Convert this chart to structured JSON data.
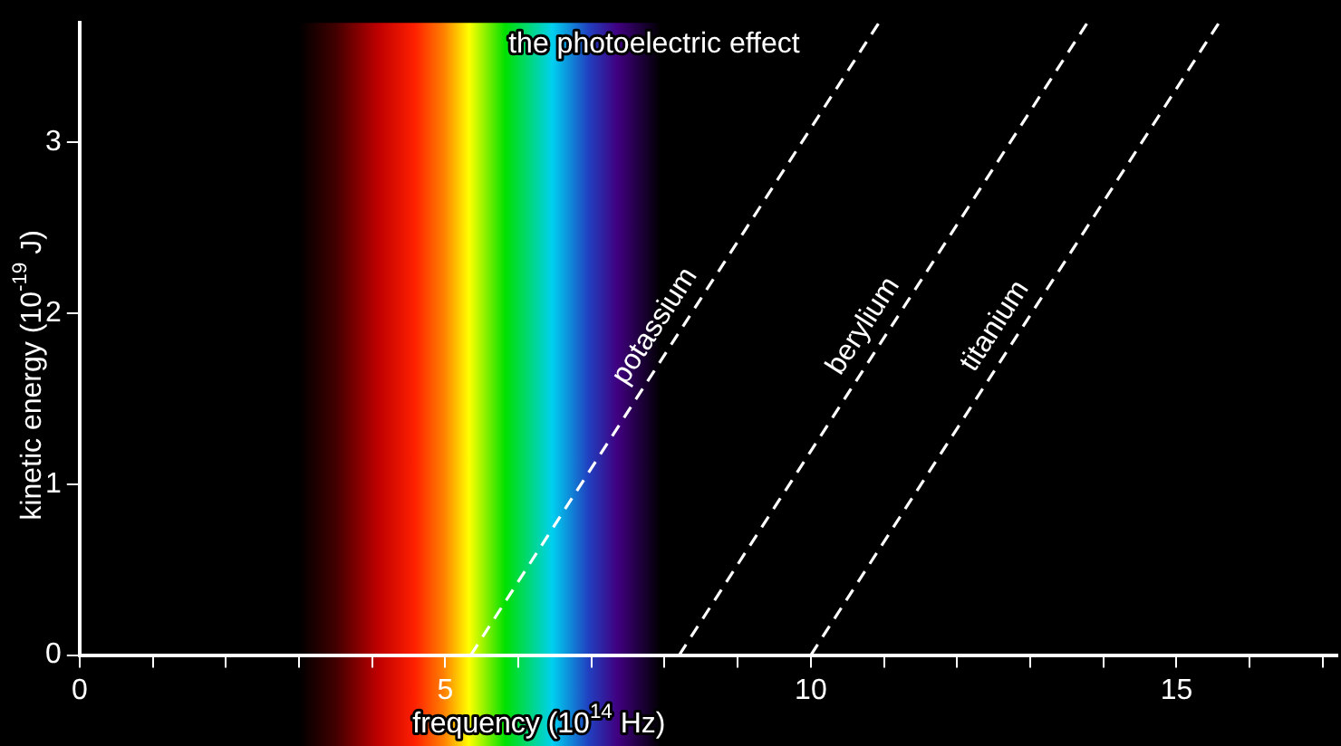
{
  "chart_data": {
    "type": "line",
    "title": "the photoelectric effect",
    "xlabel": "frequency (10$^{14}$ Hz)",
    "ylabel": "kinetic energy (10$^{-19}$ J)",
    "series": [
      {
        "name": "potassium",
        "color": "#ffffff",
        "x": [
          5.35,
          10.93
        ],
        "values": [
          0,
          3.7
        ]
      },
      {
        "name": "berylium",
        "color": "#ffffff",
        "x": [
          8.2,
          13.78
        ],
        "values": [
          0,
          3.7
        ]
      },
      {
        "name": "titanium",
        "color": "#ffffff",
        "x": [
          10.0,
          15.58
        ],
        "values": [
          0,
          3.7
        ]
      }
    ],
    "bands": [
      {
        "axis": "x",
        "from": 3.0,
        "to": 7.95
      }
    ],
    "xlim": [
      0,
      17.2
    ],
    "ylim": [
      0,
      3.7
    ],
    "xticks": [
      0,
      {
        "value": 1,
        "label": null
      },
      {
        "value": 2,
        "label": null
      },
      {
        "value": 3,
        "label": null
      },
      {
        "value": 4,
        "label": null
      },
      5,
      {
        "value": 6,
        "label": null
      },
      {
        "value": 7,
        "label": null
      },
      {
        "value": 8,
        "label": null
      },
      {
        "value": 9,
        "label": null
      },
      10,
      {
        "value": 11,
        "label": null
      },
      {
        "value": 12,
        "label": null
      },
      {
        "value": 13,
        "label": null
      },
      {
        "value": 14,
        "label": null
      },
      15,
      {
        "value": 16,
        "label": null
      },
      {
        "value": 17,
        "label": null
      }
    ],
    "yticks": [
      0,
      1,
      2,
      3
    ],
    "grid": false,
    "legend": false,
    "marker": "none",
    "line_style": "dashed"
  }
}
